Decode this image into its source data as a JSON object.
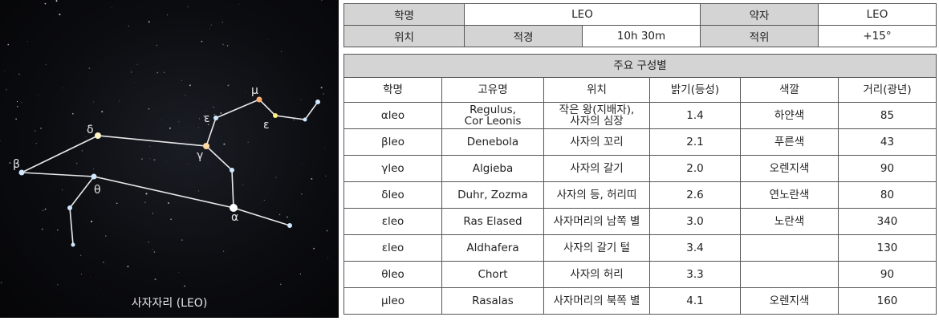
{
  "sky": {
    "caption": "사자자리 (LEO)",
    "labels": {
      "mu": "μ",
      "epsilon1": "ε",
      "epsilon2": "ε",
      "delta": "δ",
      "gamma": "γ",
      "beta": "β",
      "theta": "θ",
      "alpha": "α"
    }
  },
  "info": {
    "name_label": "학명",
    "name_value": "LEO",
    "abbr_label": "약자",
    "abbr_value": "LEO",
    "position_label": "위치",
    "ra_label": "적경",
    "ra_value": "10h 30m",
    "dec_label": "적위",
    "dec_value": "+15°"
  },
  "stars_table": {
    "title": "주요 구성별",
    "headers": [
      "학명",
      "고유명",
      "위치",
      "밝기(등성)",
      "색깔",
      "거리(광년)"
    ],
    "rows": [
      {
        "sci": "αleo",
        "name": "Regulus,\nCor Leonis",
        "pos": "작은 왕(지배자),\n사자의 심장",
        "mag": "1.4",
        "color": "하얀색",
        "dist": "85"
      },
      {
        "sci": "βleo",
        "name": "Denebola",
        "pos": "사자의 꼬리",
        "mag": "2.1",
        "color": "푸른색",
        "dist": "43"
      },
      {
        "sci": "γleo",
        "name": "Algieba",
        "pos": "사자의 갈기",
        "mag": "2.0",
        "color": "오렌지색",
        "dist": "90"
      },
      {
        "sci": "δleo",
        "name": "Duhr, Zozma",
        "pos": "사자의 등, 허리띠",
        "mag": "2.6",
        "color": "연노란색",
        "dist": "80"
      },
      {
        "sci": "εleo",
        "name": "Ras Elased",
        "pos": "사자머리의 남쪽 별",
        "mag": "3.0",
        "color": "노란색",
        "dist": "340"
      },
      {
        "sci": "εleo",
        "name": "Aldhafera",
        "pos": "사자의 갈기 털",
        "mag": "3.4",
        "color": "",
        "dist": "130"
      },
      {
        "sci": "θleo",
        "name": "Chort",
        "pos": "사자의 허리",
        "mag": "3.3",
        "color": "",
        "dist": "90"
      },
      {
        "sci": "μleo",
        "name": "Rasalas",
        "pos": "사자머리의 북쪽 별",
        "mag": "4.1",
        "color": "오렌지색",
        "dist": "160"
      }
    ]
  }
}
